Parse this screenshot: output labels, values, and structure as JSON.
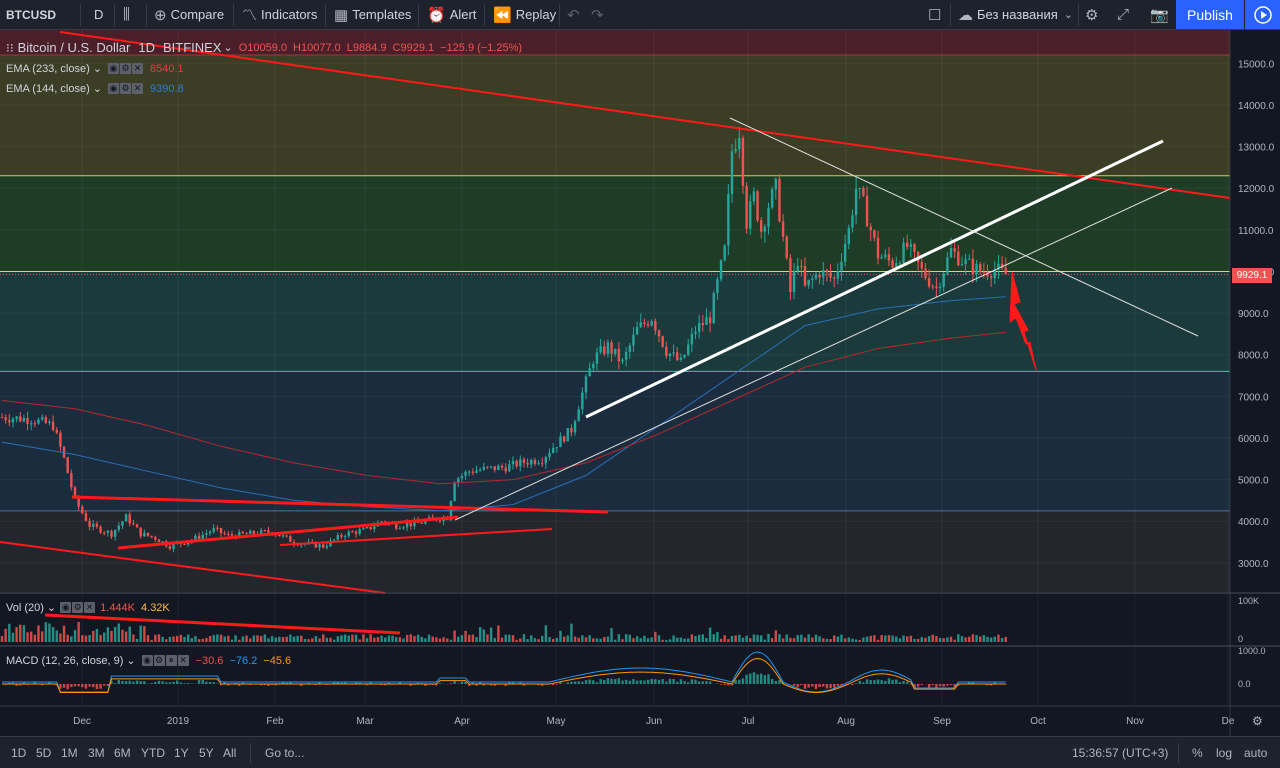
{
  "toolbar": {
    "symbol": "BTCUSD",
    "interval": "D",
    "compare": "Compare",
    "indicators": "Indicators",
    "templates": "Templates",
    "alert": "Alert",
    "replay": "Replay",
    "layout_name": "Без названия",
    "publish": "Publish"
  },
  "legend": {
    "main": "Bitcoin / U.S. Dollar",
    "interval": "1D",
    "exchange": "BITFINEX",
    "open": "O10059.0",
    "high": "H10077.0",
    "low": "L9884.9",
    "close": "C9929.1",
    "change": "−125.9 (−1.25%)",
    "ema1_label": "EMA (233, close)",
    "ema1_value": "8540.1",
    "ema2_label": "EMA (144, close)",
    "ema2_value": "9390.8",
    "vol_label": "Vol (20)",
    "vol_v1": "1.444K",
    "vol_v2": "4.32K",
    "macd_label": "MACD (12, 26, close, 9)",
    "macd_v1": "−30.6",
    "macd_v2": "−76.2",
    "macd_v3": "−45.6"
  },
  "price_axis": [
    "15000.0",
    "14000.0",
    "13000.0",
    "12000.0",
    "11000.0",
    "10000.0",
    "9000.0",
    "8000.0",
    "7000.0",
    "6000.0",
    "5000.0",
    "4000.0",
    "3000.0"
  ],
  "current_price": "9929.1",
  "vol_axis": [
    "100K",
    "0"
  ],
  "macd_axis": [
    "1000.0",
    "0.0"
  ],
  "time_axis": [
    "Dec",
    "2019",
    "Feb",
    "Mar",
    "Apr",
    "May",
    "Jun",
    "Jul",
    "Aug",
    "Sep",
    "Oct",
    "Nov",
    "De"
  ],
  "bottom": {
    "ranges": [
      "1D",
      "5D",
      "1M",
      "3M",
      "6M",
      "YTD",
      "1Y",
      "5Y",
      "All"
    ],
    "goto": "Go to...",
    "clock": "15:36:57 (UTC+3)",
    "percent": "%",
    "log": "log",
    "auto": "auto"
  },
  "colors": {
    "up": "#26a69a",
    "down": "#ef5350",
    "accent": "#2962ff",
    "drawing": "#ff0000"
  },
  "chart_data": {
    "type": "line",
    "series": [
      {
        "values": [
          [
            0,
            6500
          ],
          [
            8,
            6450
          ],
          [
            14,
            6300
          ],
          [
            17,
            5500
          ],
          [
            20,
            4500
          ],
          [
            24,
            3900
          ],
          [
            30,
            3700
          ],
          [
            34,
            4100
          ],
          [
            38,
            3700
          ],
          [
            42,
            3600
          ],
          [
            46,
            3400
          ],
          [
            52,
            3550
          ],
          [
            58,
            3800
          ],
          [
            62,
            3650
          ],
          [
            68,
            3700
          ],
          [
            74,
            3750
          ],
          [
            80,
            3500
          ],
          [
            88,
            3400
          ],
          [
            94,
            3700
          ],
          [
            100,
            3800
          ],
          [
            104,
            4000
          ],
          [
            108,
            3900
          ],
          [
            114,
            3950
          ],
          [
            118,
            4050
          ],
          [
            122,
            4100
          ],
          [
            124,
            5000
          ],
          [
            128,
            5200
          ],
          [
            132,
            5250
          ],
          [
            138,
            5300
          ],
          [
            142,
            5400
          ],
          [
            148,
            5500
          ],
          [
            150,
            5700
          ],
          [
            156,
            6200
          ],
          [
            158,
            6800
          ],
          [
            162,
            7900
          ],
          [
            166,
            8200
          ],
          [
            170,
            7800
          ],
          [
            174,
            8600
          ],
          [
            178,
            8900
          ],
          [
            182,
            8100
          ],
          [
            186,
            7800
          ],
          [
            190,
            8600
          ],
          [
            194,
            8900
          ],
          [
            198,
            10500
          ],
          [
            200,
            12900
          ],
          [
            202,
            13400
          ],
          [
            204,
            11200
          ],
          [
            206,
            11800
          ],
          [
            208,
            11000
          ],
          [
            210,
            11600
          ],
          [
            212,
            12000
          ],
          [
            214,
            10800
          ],
          [
            216,
            9500
          ],
          [
            218,
            10300
          ],
          [
            220,
            9600
          ],
          [
            224,
            10000
          ],
          [
            228,
            9800
          ],
          [
            232,
            11000
          ],
          [
            234,
            12000
          ],
          [
            236,
            11600
          ],
          [
            240,
            10400
          ],
          [
            244,
            10200
          ],
          [
            248,
            10600
          ],
          [
            252,
            10000
          ],
          [
            256,
            9600
          ],
          [
            260,
            10500
          ],
          [
            264,
            10200
          ],
          [
            268,
            10000
          ],
          [
            272,
            10050
          ],
          [
            275,
            9929
          ]
        ]
      },
      {
        "values": [
          [
            0,
            5900
          ],
          [
            20,
            5600
          ],
          [
            40,
            5200
          ],
          [
            60,
            4800
          ],
          [
            80,
            4500
          ],
          [
            100,
            4350
          ],
          [
            120,
            4250
          ],
          [
            140,
            4400
          ],
          [
            160,
            5100
          ],
          [
            180,
            6300
          ],
          [
            200,
            7500
          ],
          [
            220,
            8700
          ],
          [
            240,
            9100
          ],
          [
            260,
            9300
          ],
          [
            275,
            9390
          ]
        ]
      },
      {
        "values": [
          [
            0,
            6900
          ],
          [
            20,
            6700
          ],
          [
            40,
            6300
          ],
          [
            60,
            5800
          ],
          [
            80,
            5400
          ],
          [
            100,
            5100
          ],
          [
            120,
            4900
          ],
          [
            140,
            5000
          ],
          [
            160,
            5400
          ],
          [
            180,
            6100
          ],
          [
            200,
            6900
          ],
          [
            220,
            7700
          ],
          [
            240,
            8150
          ],
          [
            260,
            8400
          ],
          [
            275,
            8540
          ]
        ]
      }
    ],
    "ylim": [
      2300,
      15800
    ],
    "x": [
      "Dec",
      "2019",
      "Feb",
      "Mar",
      "Apr",
      "May",
      "Jun",
      "Jul",
      "Aug",
      "Sep",
      "Oct",
      "Nov",
      "De"
    ]
  }
}
